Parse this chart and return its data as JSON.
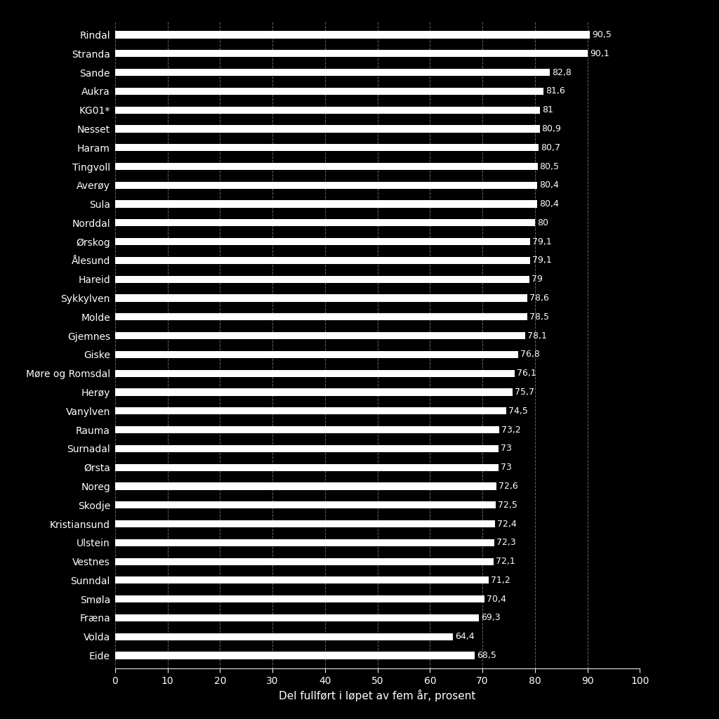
{
  "categories": [
    "Rindal",
    "Stranda",
    "Sande",
    "Aukra",
    "KG01*",
    "Nesset",
    "Haram",
    "Tingvoll",
    "Averøy",
    "Sula",
    "Norddal",
    "Ørskog",
    "Ålesund",
    "Hareid",
    "Sykkylven",
    "Molde",
    "Gjemnes",
    "Giske",
    "Møre og Romsdal",
    "Herøy",
    "Vanylven",
    "Rauma",
    "Surnadal",
    "Ørsta",
    "Noreg",
    "Skodje",
    "Kristiansund",
    "Ulstein",
    "Vestnes",
    "Sunndal",
    "Smøla",
    "Fræna",
    "Volda",
    "Eide"
  ],
  "values": [
    90.5,
    90.1,
    82.8,
    81.6,
    81.0,
    80.9,
    80.7,
    80.5,
    80.4,
    80.4,
    80.0,
    79.1,
    79.1,
    79.0,
    78.6,
    78.5,
    78.1,
    76.8,
    76.1,
    75.7,
    74.5,
    73.2,
    73.0,
    73.0,
    72.6,
    72.5,
    72.4,
    72.3,
    72.1,
    71.2,
    70.4,
    69.3,
    64.4,
    68.5
  ],
  "value_labels": [
    "90,5",
    "90,1",
    "82,8",
    "81,6",
    "81",
    "80,9",
    "80,7",
    "80,5",
    "80,4",
    "80,4",
    "80",
    "79,1",
    "79,1",
    "79",
    "78,6",
    "78,5",
    "78,1",
    "76,8",
    "76,1",
    "75,7",
    "74,5",
    "73,2",
    "73",
    "73",
    "72,6",
    "72,5",
    "72,4",
    "72,3",
    "72,1",
    "71,2",
    "70,4",
    "69,3",
    "64,4",
    "68,5"
  ],
  "bar_color": "#ffffff",
  "background_color": "#000000",
  "text_color": "#ffffff",
  "xlabel": "Del fullført i løpet av fem år, prosent",
  "xlim": [
    0,
    100
  ],
  "xticks": [
    0,
    10,
    20,
    30,
    40,
    50,
    60,
    70,
    80,
    90,
    100
  ],
  "grid_color": "#ffffff",
  "bar_height": 0.38,
  "figsize": [
    10.24,
    10.24
  ],
  "dpi": 100,
  "label_fontsize": 9,
  "tick_fontsize": 10,
  "xlabel_fontsize": 11
}
